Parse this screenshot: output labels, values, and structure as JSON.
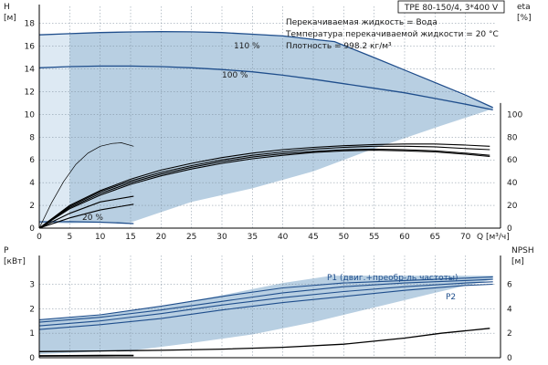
{
  "chart_data": {
    "type": "line",
    "title": "TPE 80-150/4, 3*400 V",
    "info_lines": [
      "Перекачиваемая жидкость = Вода",
      "Температура перекачиваемой жидкости = 20 °C",
      "Плотность = 998.2 кг/м³"
    ],
    "colors": {
      "blue": "#1f4e8c",
      "black": "#000000",
      "region": "#b8cfe2",
      "region_light": "#dde9f3",
      "axis": "#000000"
    },
    "x_axis": {
      "label": "Q [м³/ч]",
      "min": 0,
      "max": 75,
      "ticks": [
        0,
        5,
        10,
        15,
        20,
        25,
        30,
        35,
        40,
        45,
        50,
        55,
        60,
        65,
        70
      ]
    },
    "top": {
      "y_axis": {
        "label_line1": "H",
        "label_line2": "[м]",
        "min": 0,
        "max": 19.5,
        "ticks": [
          0,
          2,
          4,
          6,
          8,
          10,
          12,
          14,
          16,
          18
        ]
      },
      "y2_axis": {
        "label_line1": "eta",
        "label_line2": "[%]",
        "min": 0,
        "max": 195,
        "ticks": [
          0,
          20,
          40,
          60,
          80,
          100
        ]
      },
      "region_outer": {
        "x": [
          0,
          1,
          5,
          12,
          20,
          30,
          40,
          48.5,
          74.5,
          74.5,
          66,
          55,
          45,
          35,
          25,
          15,
          7,
          3,
          0
        ],
        "y": [
          16.9,
          17.0,
          17.1,
          17.2,
          17.25,
          17.2,
          16.95,
          16.4,
          10.6,
          10.5,
          9.0,
          7.0,
          5.0,
          3.5,
          2.3,
          0.5,
          0.45,
          0.4,
          0.3
        ]
      },
      "region_light": {
        "x": [
          0,
          1,
          5,
          5,
          3,
          0
        ],
        "y": [
          16.9,
          17.0,
          17.1,
          0.5,
          0.4,
          0.3
        ]
      },
      "head_curves": [
        {
          "name": "110 %",
          "x": [
            0,
            5,
            10,
            15,
            20,
            25,
            30,
            35,
            40,
            45,
            48.5,
            55,
            60,
            65,
            70,
            74.5
          ],
          "y": [
            17.0,
            17.1,
            17.2,
            17.25,
            17.28,
            17.26,
            17.2,
            17.05,
            16.9,
            16.6,
            16.4,
            15.0,
            13.9,
            12.8,
            11.7,
            10.6
          ]
        },
        {
          "name": "100 %",
          "x": [
            0,
            5,
            10,
            15,
            20,
            25,
            30,
            35,
            40,
            45,
            50,
            55,
            60,
            65,
            70,
            74.5
          ],
          "y": [
            14.1,
            14.2,
            14.25,
            14.25,
            14.2,
            14.1,
            13.95,
            13.75,
            13.45,
            13.1,
            12.7,
            12.3,
            11.9,
            11.4,
            10.9,
            10.4
          ]
        },
        {
          "name": "20 %",
          "x": [
            0,
            5,
            10,
            15.5
          ],
          "y": [
            0.55,
            0.57,
            0.52,
            0.4
          ]
        }
      ],
      "eta_curves": [
        {
          "x": [
            0,
            5,
            10,
            15,
            20,
            25,
            30,
            35,
            40,
            45,
            50,
            55,
            60,
            65,
            70,
            74
          ],
          "y": [
            0,
            20,
            33,
            43,
            51,
            57,
            62,
            66,
            69,
            71,
            72.5,
            73.5,
            74,
            74,
            73,
            72
          ]
        },
        {
          "x": [
            0,
            5,
            10,
            15,
            20,
            25,
            30,
            35,
            40,
            45,
            50,
            55,
            60,
            65,
            70,
            74
          ],
          "y": [
            0,
            19,
            32,
            41.5,
            49,
            55,
            60,
            64,
            67,
            69.5,
            71,
            72,
            72,
            71.5,
            70,
            69
          ]
        },
        {
          "x": [
            0,
            5,
            10,
            15,
            20,
            25,
            30,
            35,
            40,
            45,
            50,
            55,
            60,
            65,
            70,
            74
          ],
          "y": [
            0,
            18,
            30.5,
            40,
            47.5,
            53.5,
            58.5,
            62.5,
            65.5,
            67.5,
            69,
            69.5,
            69,
            68,
            66,
            64
          ]
        },
        {
          "x": [
            0,
            5,
            10,
            15,
            20,
            25,
            30,
            35,
            40,
            45,
            50,
            55,
            60,
            65,
            70,
            74
          ],
          "y": [
            0,
            17,
            29,
            38.5,
            46,
            52,
            57,
            61,
            64,
            66.5,
            68,
            68.5,
            68,
            67,
            65,
            63
          ]
        },
        {
          "x": [
            0,
            2,
            4,
            6,
            8,
            10,
            12,
            13.5,
            15.5
          ],
          "y": [
            0,
            22,
            41,
            56,
            66,
            72,
            74.5,
            75,
            72
          ]
        },
        {
          "x": [
            0,
            5,
            10,
            15.5
          ],
          "y": [
            0,
            13,
            23,
            28
          ]
        },
        {
          "x": [
            0,
            5,
            10,
            15.5
          ],
          "y": [
            0,
            9,
            16,
            21
          ]
        }
      ]
    },
    "bottom": {
      "y_axis": {
        "label_line1": "P",
        "label_line2": "[кВт]",
        "min": 0,
        "max": 3.8,
        "ticks": [
          0,
          1,
          2,
          3
        ]
      },
      "y2_axis": {
        "label_line1": "NPSH",
        "label_line2": "[м]",
        "min": 0,
        "max": 7.6,
        "ticks": [
          0,
          2,
          4,
          6
        ]
      },
      "region_outer": {
        "x": [
          0,
          10,
          20,
          30,
          40,
          48,
          74.5,
          74.5,
          65,
          55,
          45,
          35,
          25,
          15.5,
          10,
          0
        ],
        "y": [
          1.55,
          1.75,
          2.1,
          2.55,
          3.05,
          3.35,
          3.35,
          3.2,
          2.65,
          2.05,
          1.45,
          0.95,
          0.6,
          0.3,
          0.25,
          0.15
        ]
      },
      "power_curves": [
        {
          "name": "P1 (двиг.+преобр-ль частоты)",
          "x": [
            0,
            10,
            20,
            30,
            40,
            50,
            60,
            70,
            74.5
          ],
          "y": [
            1.55,
            1.75,
            2.1,
            2.5,
            2.85,
            3.05,
            3.15,
            3.25,
            3.3
          ]
        },
        {
          "name": "P2",
          "x": [
            0,
            10,
            20,
            30,
            40,
            50,
            60,
            70,
            74.5
          ],
          "y": [
            1.3,
            1.5,
            1.8,
            2.15,
            2.45,
            2.7,
            2.9,
            3.05,
            3.1
          ]
        },
        {
          "x": [
            0,
            10,
            20,
            30,
            40,
            50,
            60,
            70,
            74.5
          ],
          "y": [
            1.45,
            1.65,
            1.95,
            2.3,
            2.65,
            2.9,
            3.05,
            3.15,
            3.2
          ]
        },
        {
          "x": [
            0,
            10,
            20,
            30,
            40,
            50,
            60,
            70,
            74.5
          ],
          "y": [
            1.15,
            1.35,
            1.6,
            1.95,
            2.25,
            2.5,
            2.75,
            2.95,
            3.0
          ]
        }
      ],
      "npsh_curves": [
        {
          "x": [
            0,
            10,
            20,
            30,
            40,
            50,
            60,
            66,
            70,
            74
          ],
          "y": [
            0.5,
            0.55,
            0.6,
            0.7,
            0.85,
            1.1,
            1.6,
            2.0,
            2.2,
            2.4
          ]
        },
        {
          "x": [
            0,
            5,
            10,
            15.5
          ],
          "y": [
            0.15,
            0.16,
            0.17,
            0.18
          ]
        }
      ]
    },
    "labels": {
      "head_110": "110 %",
      "head_100": "100 %",
      "head_20": "20 %",
      "p1": "P1 (двиг.+преобр-ль частоты)",
      "p2": "P2"
    }
  }
}
